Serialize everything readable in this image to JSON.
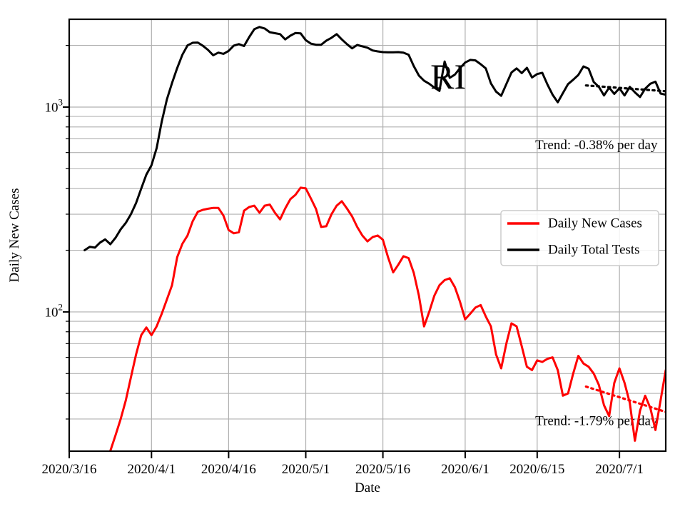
{
  "figure": {
    "background": "#ffffff",
    "accent_red": "#ff0000",
    "accent_black": "#000000",
    "grid_color": "#b0b0b0",
    "legend_border_color": "#cccccc"
  },
  "chart_data": {
    "type": "line",
    "title": "",
    "xlabel": "Date",
    "ylabel": "Daily New Cases",
    "grid": true,
    "legend_position": "center-right",
    "x_axis": {
      "start_date": "2020/3/16",
      "total_days": 116,
      "ticks": [
        {
          "label": "2020/3/16",
          "day": 0
        },
        {
          "label": "2020/4/1",
          "day": 16
        },
        {
          "label": "2020/4/16",
          "day": 31
        },
        {
          "label": "2020/5/1",
          "day": 46
        },
        {
          "label": "2020/5/16",
          "day": 61
        },
        {
          "label": "2020/6/1",
          "day": 77
        },
        {
          "label": "2020/6/15",
          "day": 91
        },
        {
          "label": "2020/7/1",
          "day": 107
        }
      ]
    },
    "y_axis": {
      "scale": "log",
      "ylim": [
        20.9,
        2683
      ],
      "major_ticks": [
        {
          "base": "10",
          "exp": "3",
          "value": 1000
        },
        {
          "base": "10",
          "exp": "2",
          "value": 100
        }
      ],
      "minor_tick_values": [
        2000,
        900,
        800,
        700,
        600,
        500,
        400,
        300,
        200,
        90,
        80,
        70,
        60,
        50,
        40,
        30
      ]
    },
    "series": [
      {
        "name": "Daily New Cases",
        "color": "#ff0000",
        "start_day": 8,
        "values": [
          21,
          25,
          30,
          37,
          48,
          62,
          77,
          84,
          77,
          85,
          98,
          115,
          135,
          185,
          215,
          236,
          277,
          308,
          315,
          319,
          322,
          322,
          295,
          251,
          242,
          245,
          312,
          325,
          330,
          305,
          330,
          334,
          305,
          283,
          320,
          355,
          373,
          404,
          401,
          358,
          318,
          260,
          262,
          300,
          330,
          347,
          320,
          293,
          260,
          236,
          221,
          232,
          236,
          225,
          185,
          156,
          170,
          187,
          183,
          155,
          120,
          85,
          100,
          120,
          135,
          143,
          146,
          132,
          112,
          92,
          98,
          105,
          108,
          95,
          85,
          62,
          53,
          70,
          88,
          85,
          68,
          54,
          52,
          58,
          57,
          59,
          60,
          52,
          39,
          40,
          50,
          61,
          56,
          54,
          50,
          44,
          35,
          31,
          45,
          53,
          45,
          36,
          23.5,
          33,
          39,
          34,
          26.5,
          37,
          52
        ]
      },
      {
        "name": "Daily Total Tests",
        "color": "#000000",
        "start_day": 3,
        "values": [
          200,
          208,
          206,
          218,
          226,
          214,
          230,
          253,
          272,
          300,
          340,
          400,
          468,
          520,
          630,
          850,
          1090,
          1310,
          1550,
          1800,
          2000,
          2060,
          2065,
          1990,
          1900,
          1790,
          1845,
          1820,
          1880,
          1995,
          2030,
          1985,
          2195,
          2400,
          2460,
          2420,
          2320,
          2295,
          2270,
          2140,
          2230,
          2300,
          2290,
          2120,
          2040,
          2015,
          2015,
          2110,
          2180,
          2270,
          2140,
          2030,
          1935,
          2010,
          1980,
          1950,
          1890,
          1870,
          1855,
          1850,
          1850,
          1855,
          1845,
          1800,
          1585,
          1425,
          1345,
          1300,
          1245,
          1200,
          1670,
          1390,
          1440,
          1550,
          1650,
          1700,
          1690,
          1620,
          1545,
          1305,
          1190,
          1135,
          1295,
          1475,
          1545,
          1465,
          1555,
          1395,
          1450,
          1470,
          1290,
          1150,
          1055,
          1170,
          1295,
          1360,
          1435,
          1580,
          1540,
          1325,
          1255,
          1140,
          1245,
          1160,
          1235,
          1140,
          1255,
          1180,
          1120,
          1230,
          1300,
          1330,
          1165,
          1150
        ]
      }
    ],
    "trend_lines": [
      {
        "name": "tests-trend",
        "color": "#000000",
        "style": "dotted",
        "start_day": 100.5,
        "end_day": 116,
        "start_value": 1275,
        "end_value": 1195
      },
      {
        "name": "cases-trend",
        "color": "#ff0000",
        "style": "dotted",
        "start_day": 100.5,
        "end_day": 116,
        "start_value": 43.2,
        "end_value": 32.5
      }
    ],
    "annotations": [
      {
        "id": "state-label",
        "text": "RI",
        "day": 73.7,
        "value": 1410,
        "font_size": 50,
        "anchor": "middle",
        "color": "#000000"
      },
      {
        "id": "trend-tests-label",
        "text": "Trend: -0.38% per day",
        "day": 114.4,
        "value": 650,
        "font_size": 19,
        "anchor": "end",
        "color": "#000000"
      },
      {
        "id": "trend-cases-label",
        "text": "Trend: -1.79% per day",
        "day": 114.4,
        "value": 29.3,
        "font_size": 19,
        "anchor": "end",
        "color": "#000000"
      }
    ],
    "legend": {
      "entries": [
        {
          "label": "Daily New Cases",
          "color": "#ff0000"
        },
        {
          "label": "Daily Total Tests",
          "color": "#000000"
        }
      ]
    }
  }
}
